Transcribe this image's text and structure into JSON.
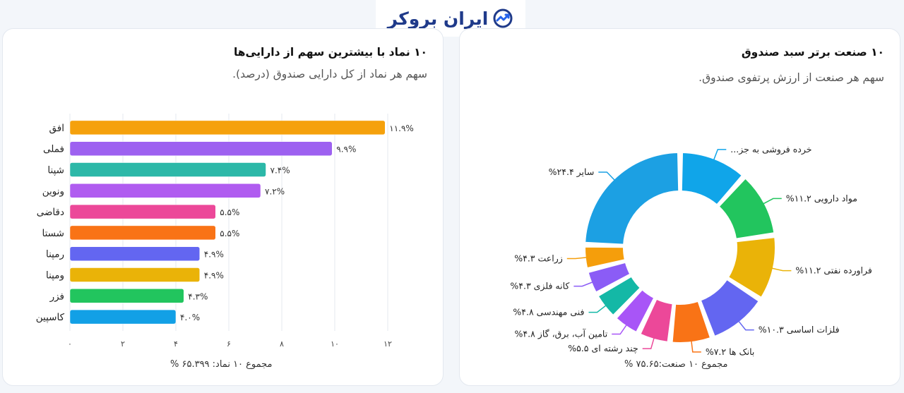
{
  "brand": {
    "name": "ایران بروکر",
    "color": "#1f3a8a"
  },
  "left_panel": {
    "title": "۱۰ نماد با بیشترین سهم از دارایی‌ها",
    "subtitle": "سهم هر نماد از کل دارایی صندوق (درصد).",
    "footer": "مجموع ۱۰ نماد: ۶۵.۳۹۹ %"
  },
  "right_panel": {
    "title": "۱۰ صنعت برتر سبد صندوق",
    "subtitle": "سهم هر صنعت از ارزش پرتفوی صندوق.",
    "footer": "مجموع ۱۰ صنعت:۷۵.۶۵ %"
  },
  "chart_data": [
    {
      "type": "bar",
      "orientation": "horizontal",
      "categories": [
        "افق",
        "فملی",
        "شپنا",
        "ونوین",
        "دقاضی",
        "شستا",
        "رمپنا",
        "ومپنا",
        "فزر",
        "کاسپین"
      ],
      "values": [
        11.9,
        9.9,
        7.4,
        7.2,
        5.5,
        5.5,
        4.9,
        4.9,
        4.3,
        4.0
      ],
      "value_labels": [
        "۱۱.۹%",
        "۹.۹%",
        "۷.۴%",
        "۷.۲%",
        "۵.۵%",
        "۵.۵%",
        "۴.۹%",
        "۴.۹%",
        "۴.۳%",
        "۴.۰%"
      ],
      "colors": [
        "#f5a10c",
        "#9d61f0",
        "#2cb8a8",
        "#b05cf0",
        "#ec4899",
        "#f97316",
        "#6366f1",
        "#eab308",
        "#22c55e",
        "#12a0e6"
      ],
      "xlim": [
        0,
        12
      ],
      "xticks": [
        0,
        2,
        4,
        6,
        8,
        10,
        12
      ],
      "xtick_labels": [
        "۰",
        "۲",
        "۴",
        "۶",
        "۸",
        "۱۰",
        "۱۲"
      ],
      "grid": true
    },
    {
      "type": "pie",
      "donut": true,
      "categories": [
        "خرده فروشی به جز...",
        "مواد دارویی",
        "فراورده نفتی",
        "فلزات اساسی",
        "بانک ها",
        "چند رشته ای",
        "تامین آب، برق، گاز",
        "فنی مهندسی",
        "کانه فلزی",
        "زراعت",
        "سایر"
      ],
      "values": [
        11.6,
        11.2,
        11.2,
        10.3,
        7.2,
        5.5,
        4.8,
        4.8,
        4.3,
        4.3,
        24.4
      ],
      "value_labels": [
        "",
        "۱۱.۲%",
        "۱۱.۲%",
        "۱۰.۳%",
        "۷.۲%",
        "۵.۵%",
        "۴.۸%",
        "۴.۸%",
        "۴.۳%",
        "۴.۳%",
        "۲۴.۴%"
      ],
      "colors": [
        "#10a5e9",
        "#22c55e",
        "#eab308",
        "#6366f1",
        "#f97316",
        "#ec4899",
        "#a855f7",
        "#14b8a6",
        "#8b5cf6",
        "#f59e0b",
        "#1ca0e3"
      ]
    }
  ]
}
